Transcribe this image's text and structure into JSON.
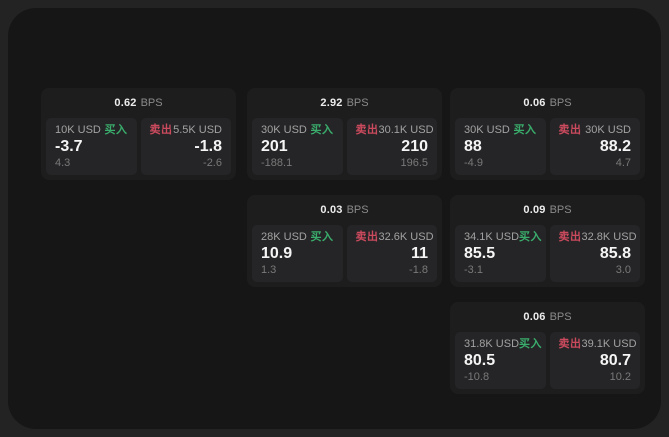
{
  "labels": {
    "bps_unit": "BPS",
    "buy": "买入",
    "sell": "卖出"
  },
  "colors": {
    "buy_green": "#3aad6c",
    "sell_red": "#cb4a5e",
    "panel_bg": "#161617",
    "card_bg": "#1d1d1e",
    "tile_bg": "#252527"
  },
  "cards": [
    {
      "bps": "0.62",
      "buy": {
        "amount": "10K USD",
        "price": "-3.7",
        "delta": "4.3"
      },
      "sell": {
        "amount": "5.5K USD",
        "price": "-1.8",
        "delta": "-2.6"
      }
    },
    {
      "bps": "2.92",
      "buy": {
        "amount": "30K USD",
        "price": "201",
        "delta": "-188.1"
      },
      "sell": {
        "amount": "30.1K USD",
        "price": "210",
        "delta": "196.5"
      }
    },
    {
      "bps": "0.06",
      "buy": {
        "amount": "30K USD",
        "price": "88",
        "delta": "-4.9"
      },
      "sell": {
        "amount": "30K USD",
        "price": "88.2",
        "delta": "4.7"
      }
    },
    {
      "bps": "0.03",
      "buy": {
        "amount": "28K USD",
        "price": "10.9",
        "delta": "1.3"
      },
      "sell": {
        "amount": "32.6K USD",
        "price": "11",
        "delta": "-1.8"
      }
    },
    {
      "bps": "0.09",
      "buy": {
        "amount": "34.1K USD",
        "price": "85.5",
        "delta": "-3.1"
      },
      "sell": {
        "amount": "32.8K USD",
        "price": "85.8",
        "delta": "3.0"
      }
    },
    {
      "bps": "0.06",
      "buy": {
        "amount": "31.8K USD",
        "price": "80.5",
        "delta": "-10.8"
      },
      "sell": {
        "amount": "39.1K USD",
        "price": "80.7",
        "delta": "10.2"
      }
    }
  ]
}
